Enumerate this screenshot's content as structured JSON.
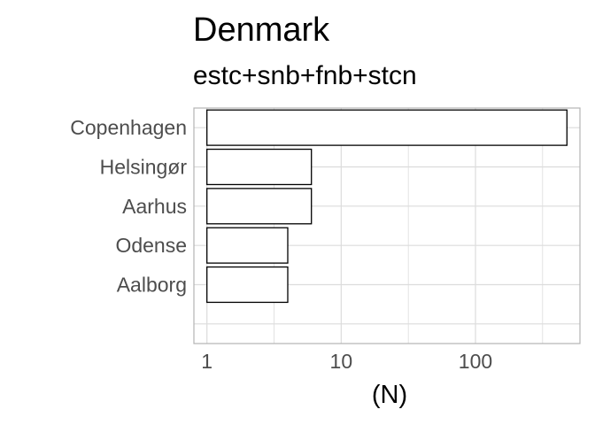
{
  "chart_data": {
    "type": "bar",
    "orientation": "horizontal",
    "title": "Denmark",
    "subtitle": "estc+snb+fnb+stcn",
    "xlabel": "(N)",
    "ylabel": "",
    "x_scale": "log10",
    "xlim": [
      0.8,
      600
    ],
    "x_ticks": [
      1,
      10,
      100
    ],
    "x_tick_labels": [
      "1",
      "10",
      "100"
    ],
    "categories": [
      "Copenhagen",
      "Helsingør",
      "Aarhus",
      "Odense",
      "Aalborg",
      ""
    ],
    "values": [
      480,
      6,
      6,
      4,
      4,
      1
    ],
    "bar_fill": "#ffffff",
    "bar_stroke": "#000000",
    "grid": true,
    "grid_color": "#dcdcdc",
    "panel_border_color": "#b3b3b3"
  }
}
